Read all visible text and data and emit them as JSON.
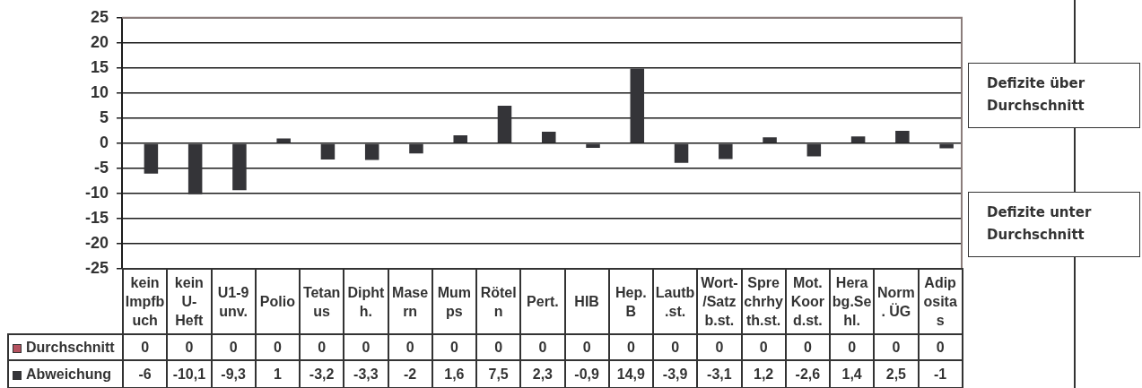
{
  "chart_data": {
    "type": "bar",
    "categories": [
      "kein Impfbuch",
      "kein U-Heft",
      "U1-9 unv.",
      "Polio",
      "Tetanus",
      "Diphth.",
      "Masern",
      "Mumps",
      "Röteln",
      "Pert.",
      "HIB",
      "Hep. B",
      "Lautb.st.",
      "Wort-/Satzb.st.",
      "Sprechrhyth.st.",
      "Mot. Koord.st.",
      "Herabg.Sehl.",
      "Norm. ÜG",
      "Adipositas"
    ],
    "series": [
      {
        "name": "Durchschnitt",
        "color": "#b5525f",
        "values": [
          0,
          0,
          0,
          0,
          0,
          0,
          0,
          0,
          0,
          0,
          0,
          0,
          0,
          0,
          0,
          0,
          0,
          0,
          0
        ],
        "value_labels": [
          "0",
          "0",
          "0",
          "0",
          "0",
          "0",
          "0",
          "0",
          "0",
          "0",
          "0",
          "0",
          "0",
          "0",
          "0",
          "0",
          "0",
          "0",
          "0"
        ]
      },
      {
        "name": "Abweichung",
        "color": "#343438",
        "values": [
          -6,
          -10.1,
          -9.3,
          1,
          -3.2,
          -3.3,
          -2,
          1.6,
          7.5,
          2.3,
          -0.9,
          14.9,
          -3.9,
          -3.1,
          1.2,
          -2.6,
          1.4,
          2.5,
          -1
        ],
        "value_labels": [
          "-6",
          "-10,1",
          "-9,3",
          "1",
          "-3,2",
          "-3,3",
          "-2",
          "1,6",
          "7,5",
          "2,3",
          "-0,9",
          "14,9",
          "-3,9",
          "-3,1",
          "1,2",
          "-2,6",
          "1,4",
          "2,5",
          "-1"
        ]
      }
    ],
    "ylim": [
      -25,
      25
    ],
    "yticks": [
      -25,
      -20,
      -15,
      -10,
      -5,
      0,
      5,
      10,
      15,
      20,
      25
    ],
    "grid": "y",
    "legend": "bottom left",
    "annotations": [
      "Defizite über Durchschnitt",
      "Defizite unter Durchschnitt"
    ]
  }
}
